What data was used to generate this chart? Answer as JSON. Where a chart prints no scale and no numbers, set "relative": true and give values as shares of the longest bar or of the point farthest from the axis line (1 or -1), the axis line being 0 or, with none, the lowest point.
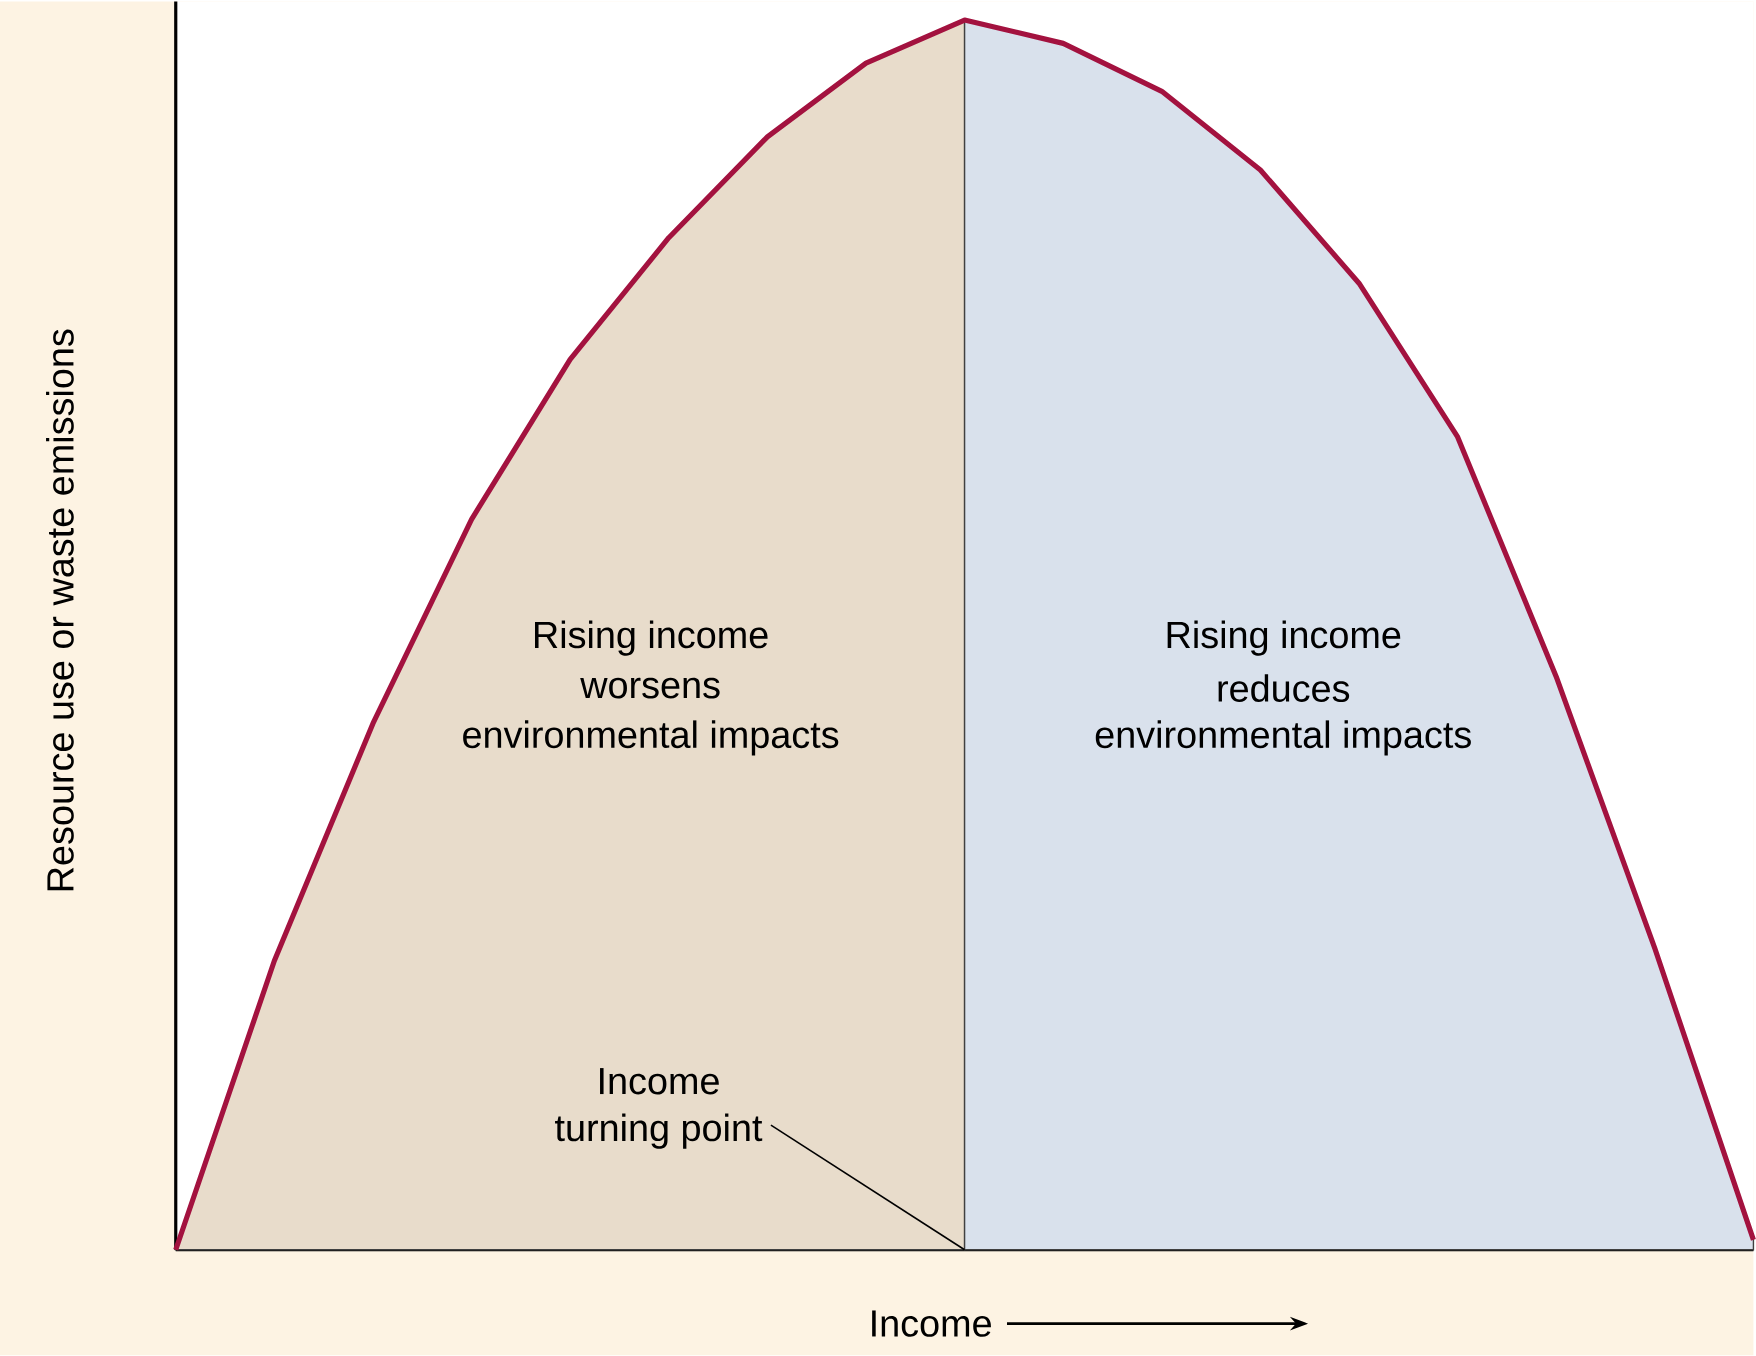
{
  "chart_data": {
    "type": "line",
    "relative": true,
    "xlabel": "Income",
    "ylabel": "Resource use or waste emissions",
    "categories": [
      null,
      null,
      null,
      null,
      null,
      null,
      null,
      null,
      null,
      null,
      null,
      null,
      null,
      null,
      null,
      null,
      null
    ],
    "series": [
      {
        "type": "area",
        "color": "#e8dccb",
        "values": [
          0,
          0.235,
          0.428,
          0.594,
          0.724,
          0.823,
          0.905,
          0.965,
          1.0,
          null,
          null,
          null,
          null,
          null,
          null,
          null,
          null
        ]
      },
      {
        "type": "area",
        "color": "#d9e1ec",
        "values": [
          null,
          null,
          null,
          null,
          null,
          null,
          null,
          null,
          1.0,
          0.981,
          0.942,
          0.878,
          0.786,
          0.661,
          0.466,
          0.245,
          0.008
        ]
      },
      {
        "color": "#a3123f",
        "values": [
          0,
          0.235,
          0.428,
          0.594,
          0.724,
          0.823,
          0.905,
          0.965,
          1.0,
          0.981,
          0.942,
          0.878,
          0.786,
          0.661,
          0.466,
          0.245,
          0.008
        ]
      }
    ],
    "annotations": [
      "Rising income",
      "worsens",
      "environmental impacts",
      "Rising income",
      "reduces",
      "environmental impacts",
      "Income",
      "turning point"
    ],
    "marker": "none",
    "line_style": "solid"
  }
}
